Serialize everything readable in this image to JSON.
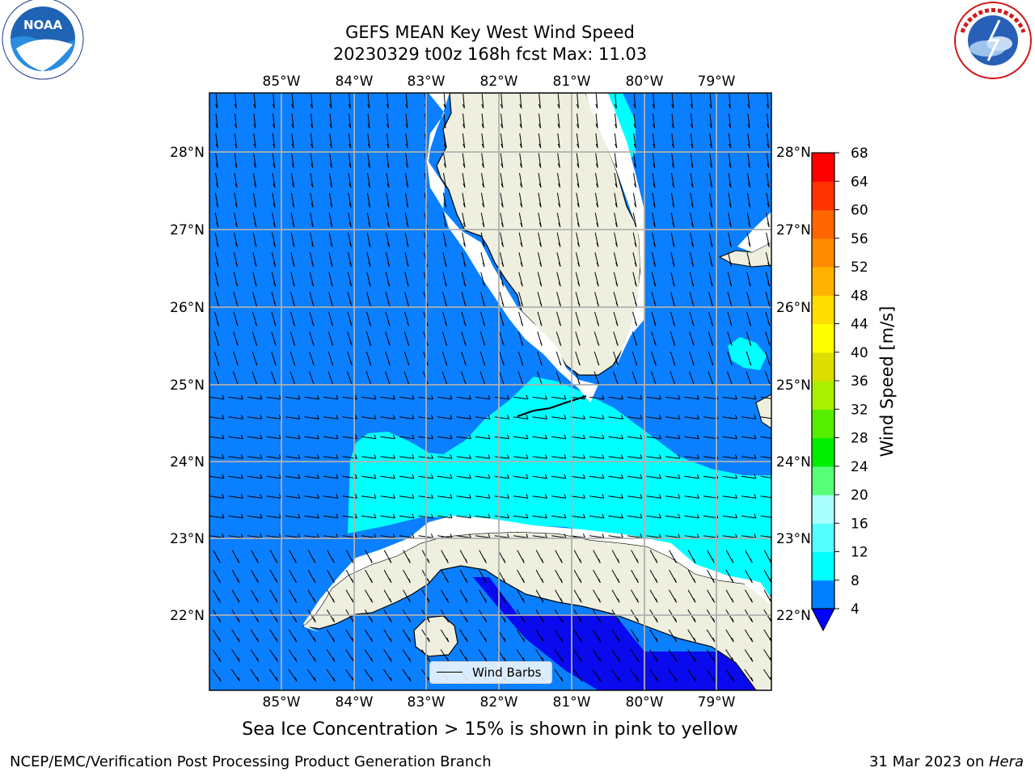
{
  "header": {
    "title_line1": "GEFS MEAN Key West Wind Speed",
    "title_line2": "20230329 t00z 168h fcst   Max: 11.03"
  },
  "logos": {
    "left": {
      "icon": "noaa-logo",
      "text": "NOAA"
    },
    "right": {
      "icon": "nws-logo"
    }
  },
  "map": {
    "lon_labels": [
      "85°W",
      "84°W",
      "83°W",
      "82°W",
      "81°W",
      "80°W",
      "79°W"
    ],
    "lat_labels": [
      "28°N",
      "27°N",
      "26°N",
      "25°N",
      "24°N",
      "23°N",
      "22°N"
    ],
    "colors": {
      "ocean_4_8": "#0a7fff",
      "ocean_8_12": "#00ffff",
      "ocean_below_4": "#0a0aee",
      "land": "#efefdf",
      "gridline": "#b0b0b0",
      "coast": "#000000"
    }
  },
  "colorbar": {
    "label": "Wind Speed [m/s]",
    "ticks": [
      "4",
      "8",
      "12",
      "16",
      "20",
      "24",
      "28",
      "32",
      "36",
      "40",
      "44",
      "48",
      "52",
      "56",
      "60",
      "64",
      "68"
    ],
    "colors": [
      "#0000ff",
      "#007fff",
      "#00ffff",
      "#55ffff",
      "#aaffff",
      "#55ff77",
      "#00ee00",
      "#55ee00",
      "#aaee00",
      "#dddd00",
      "#ffff00",
      "#ffdd00",
      "#ffb200",
      "#ff8c00",
      "#ff6600",
      "#ff3300",
      "#ff0000"
    ]
  },
  "legend": {
    "label": "Wind Barbs"
  },
  "note": "Sea Ice Concentration > 15% is shown in pink to yellow",
  "footer": {
    "left": "NCEP/EMC/Verification Post Processing Product Generation Branch",
    "right_date": "31 Mar 2023 on ",
    "right_machine": "Hera"
  }
}
